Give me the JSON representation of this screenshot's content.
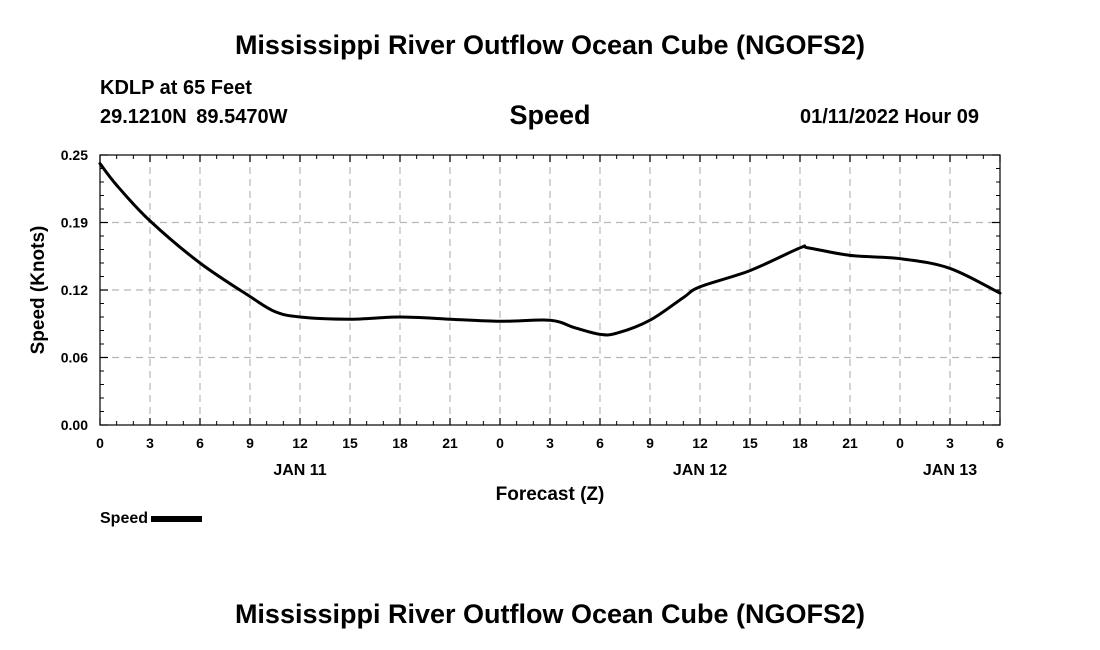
{
  "header": {
    "title": "Mississippi River Outflow Ocean Cube (NGOFS2)",
    "station": "KDLP at 65 Feet",
    "coordinates": "29.1210N  89.5470W",
    "parameter": "Speed",
    "datetime": "01/11/2022 Hour 09"
  },
  "footer": {
    "title": "Mississippi River Outflow Ocean Cube (NGOFS2)"
  },
  "legend": {
    "label": "Speed"
  },
  "colors": {
    "line": "#000000",
    "grid": "#b8b8b8",
    "background": "#ffffff"
  },
  "chart_data": {
    "type": "line",
    "title": "Speed",
    "xlabel": "Forecast (Z)",
    "ylabel": "Speed (Knots)",
    "ylim": [
      0,
      0.25
    ],
    "xlim_hours": [
      0,
      54
    ],
    "yticks": [
      "0.00",
      "0.06",
      "0.12",
      "0.19",
      "0.25"
    ],
    "ytick_values": [
      0.0,
      0.0625,
      0.125,
      0.1875,
      0.25
    ],
    "xticks": [
      "0",
      "3",
      "6",
      "9",
      "12",
      "15",
      "18",
      "21",
      "0",
      "3",
      "6",
      "9",
      "12",
      "15",
      "18",
      "21",
      "0",
      "3",
      "6"
    ],
    "date_labels": [
      {
        "label": "JAN 11",
        "hour": 12
      },
      {
        "label": "JAN 12",
        "hour": 36
      },
      {
        "label": "JAN 13",
        "hour": 51
      }
    ],
    "grid": true,
    "legend_position": "bottom-left",
    "series": [
      {
        "name": "Speed",
        "x": [
          0,
          1,
          3,
          6,
          9,
          10.5,
          12,
          15,
          18,
          21,
          24,
          27,
          28.5,
          30,
          31,
          33,
          35,
          36,
          39,
          42,
          42.5,
          45,
          48,
          51,
          54
        ],
        "y": [
          0.242,
          0.222,
          0.189,
          0.15,
          0.119,
          0.105,
          0.1,
          0.098,
          0.1,
          0.098,
          0.096,
          0.097,
          0.09,
          0.084,
          0.085,
          0.097,
          0.118,
          0.128,
          0.143,
          0.164,
          0.164,
          0.157,
          0.154,
          0.145,
          0.122
        ]
      }
    ]
  }
}
